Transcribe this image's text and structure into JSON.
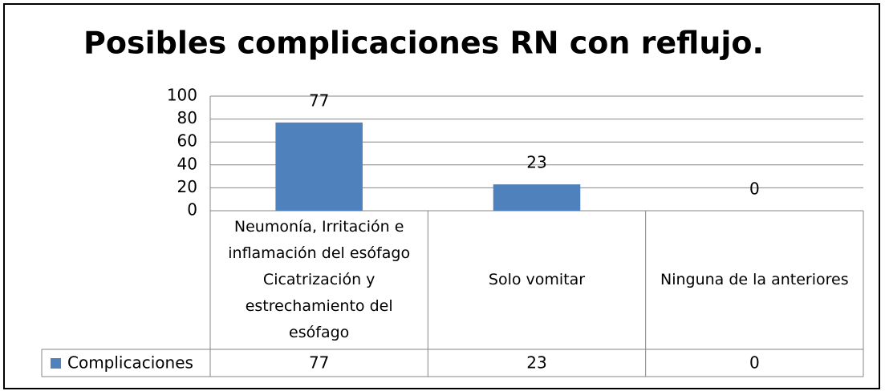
{
  "chart_data": {
    "type": "bar",
    "title": "Posibles complicaciones RN con reflujo.",
    "categories": [
      "Neumonía, Irritación e inflamación del esófago Cicatrización y estrechamiento del esófago",
      "Solo vomitar",
      "Ninguna de la anteriores"
    ],
    "series": [
      {
        "name": "Complicaciones",
        "color": "#4f81bd",
        "values": [
          77,
          23,
          0
        ]
      }
    ],
    "ylim": [
      0,
      100
    ],
    "yticks": [
      0,
      20,
      40,
      60,
      80,
      100
    ],
    "grid": true,
    "data_labels": true,
    "data_table": true
  }
}
